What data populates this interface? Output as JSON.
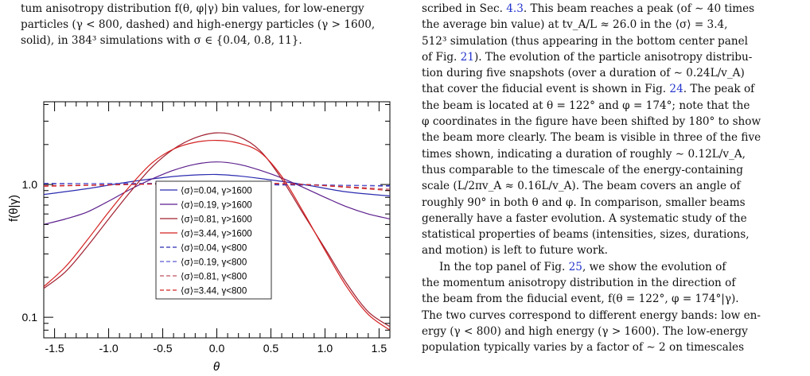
{
  "caption": {
    "lines": [
      "tum anisotropy distribution f(θ, φ|γ) bin values, for low-energy",
      "particles (γ < 800, dashed) and high-energy particles (γ > 1600,",
      "solid), in 384³ simulations with σ ∈ {0.04, 0.8, 11}."
    ]
  },
  "body": {
    "lines": [
      [
        {
          "t": "scribed in Sec. "
        },
        {
          "t": "4.3",
          "link": true
        },
        {
          "t": ". This beam reaches a peak (of ∼ 40 times"
        }
      ],
      [
        {
          "t": "the average bin value) at tv_A/L ≈ 26.0 in the ⟨σ⟩ = 3.4,"
        }
      ],
      [
        {
          "t": "512³ simulation (thus appearing in the bottom center panel"
        }
      ],
      [
        {
          "t": "of Fig. "
        },
        {
          "t": "21",
          "link": true
        },
        {
          "t": "). The evolution of the particle anisotropy distribu-"
        }
      ],
      [
        {
          "t": "tion during five snapshots (over a duration of ∼ 0.24L/v_A)"
        }
      ],
      [
        {
          "t": "that cover the fiducial event is shown in Fig. "
        },
        {
          "t": "24",
          "link": true
        },
        {
          "t": ". The peak of"
        }
      ],
      [
        {
          "t": "the beam is located at θ = 122° and φ = 174°; note that the"
        }
      ],
      [
        {
          "t": "φ coordinates in the figure have been shifted by 180° to show"
        }
      ],
      [
        {
          "t": "the beam more clearly. The beam is visible in three of the five"
        }
      ],
      [
        {
          "t": "times shown, indicating a duration of roughly ∼ 0.12L/v_A,"
        }
      ],
      [
        {
          "t": "thus comparable to the timescale of the energy-containing"
        }
      ],
      [
        {
          "t": "scale (L/2πv_A ≈ 0.16L/v_A). The beam covers an angle of"
        }
      ],
      [
        {
          "t": "roughly 90° in both θ and φ. In comparison, smaller beams"
        }
      ],
      [
        {
          "t": "generally have a faster evolution. A systematic study of the"
        }
      ],
      [
        {
          "t": "statistical properties of beams (intensities, sizes, durations,"
        }
      ],
      [
        {
          "t": "and motion) is left to future work."
        }
      ],
      [
        {
          "t": "In the top panel of Fig. "
        },
        {
          "t": "25",
          "link": true
        },
        {
          "t": ", we show the evolution of"
        }
      ],
      [
        {
          "t": "the momentum anisotropy distribution in the direction of"
        }
      ],
      [
        {
          "t": "the beam from the fiducial event, f(θ = 122°, φ = 174°|γ)."
        }
      ],
      [
        {
          "t": "The two curves correspond to different energy bands: low en-"
        }
      ],
      [
        {
          "t": "ergy (γ < 800) and high energy (γ > 1600). The low-energy"
        }
      ],
      [
        {
          "t": "population typically varies by a factor of ∼ 2 on timescales"
        }
      ]
    ]
  },
  "chart_data": {
    "type": "line",
    "xlabel": "θ",
    "ylabel": "f(θ|γ)",
    "xlim": [
      -1.6,
      1.6
    ],
    "ylim": [
      0.07,
      4.2
    ],
    "yscale": "log",
    "xticks": [
      "-1.5",
      "-1.0",
      "-0.5",
      "0.0",
      "0.5",
      "1.0",
      "1.5"
    ],
    "yticks": [
      "0.1",
      "1.0"
    ],
    "legend_position": "center",
    "series": [
      {
        "name": "⟨σ⟩=0.04, γ>1600",
        "color": "#2b2bb0",
        "dash": false,
        "x": [
          -1.6,
          -1.2,
          -0.8,
          -0.4,
          -0.2,
          0.0,
          0.2,
          0.4,
          0.8,
          1.2,
          1.6
        ],
        "y": [
          0.84,
          0.93,
          1.05,
          1.15,
          1.18,
          1.19,
          1.16,
          1.11,
          1.0,
          0.88,
          0.82
        ]
      },
      {
        "name": "⟨σ⟩=0.19, γ>1600",
        "color": "#5b1e8c",
        "dash": false,
        "x": [
          -1.6,
          -1.4,
          -1.2,
          -1.0,
          -0.8,
          -0.6,
          -0.4,
          -0.2,
          0.0,
          0.2,
          0.4,
          0.6,
          0.8,
          1.0,
          1.2,
          1.4,
          1.6
        ],
        "y": [
          0.5,
          0.55,
          0.62,
          0.75,
          0.92,
          1.1,
          1.28,
          1.42,
          1.48,
          1.42,
          1.28,
          1.12,
          0.95,
          0.8,
          0.68,
          0.6,
          0.55
        ]
      },
      {
        "name": "⟨σ⟩=0.81, γ>1600",
        "color": "#a02030",
        "dash": false,
        "x": [
          -1.6,
          -1.4,
          -1.2,
          -1.0,
          -0.8,
          -0.6,
          -0.4,
          -0.2,
          0.0,
          0.2,
          0.4,
          0.6,
          0.8,
          1.0,
          1.2,
          1.4,
          1.6
        ],
        "y": [
          0.165,
          0.22,
          0.34,
          0.55,
          0.88,
          1.35,
          1.85,
          2.25,
          2.45,
          2.3,
          1.8,
          1.1,
          0.6,
          0.33,
          0.18,
          0.11,
          0.085
        ]
      },
      {
        "name": "⟨σ⟩=3.44, γ>1600",
        "color": "#d42020",
        "dash": false,
        "x": [
          -1.6,
          -1.4,
          -1.2,
          -1.0,
          -0.8,
          -0.6,
          -0.4,
          -0.2,
          0.0,
          0.2,
          0.4,
          0.6,
          0.8,
          1.0,
          1.2,
          1.4,
          1.6
        ],
        "y": [
          0.17,
          0.24,
          0.38,
          0.62,
          0.98,
          1.45,
          1.85,
          2.08,
          2.15,
          2.05,
          1.75,
          1.15,
          0.62,
          0.32,
          0.17,
          0.105,
          0.08
        ]
      },
      {
        "name": "⟨σ⟩=0.04, γ<800",
        "color": "#2b2bb0",
        "dash": true,
        "x": [
          -1.6,
          -0.8,
          0.0,
          0.8,
          1.6
        ],
        "y": [
          1.02,
          1.01,
          1.0,
          0.99,
          0.98
        ]
      },
      {
        "name": "⟨σ⟩=0.19, γ<800",
        "color": "#5b5bd0",
        "dash": true,
        "x": [
          -1.6,
          -0.8,
          0.0,
          0.8,
          1.6
        ],
        "y": [
          1.01,
          1.02,
          1.02,
          1.0,
          0.97
        ]
      },
      {
        "name": "⟨σ⟩=0.81, γ<800",
        "color": "#c05060",
        "dash": true,
        "x": [
          -1.6,
          -0.8,
          0.0,
          0.8,
          1.6
        ],
        "y": [
          0.98,
          1.0,
          1.03,
          1.0,
          0.92
        ]
      },
      {
        "name": "⟨σ⟩=3.44, γ<800",
        "color": "#d42020",
        "dash": true,
        "x": [
          -1.6,
          -0.8,
          0.0,
          0.8,
          1.6
        ],
        "y": [
          0.97,
          1.0,
          1.04,
          1.0,
          0.9
        ]
      }
    ]
  }
}
